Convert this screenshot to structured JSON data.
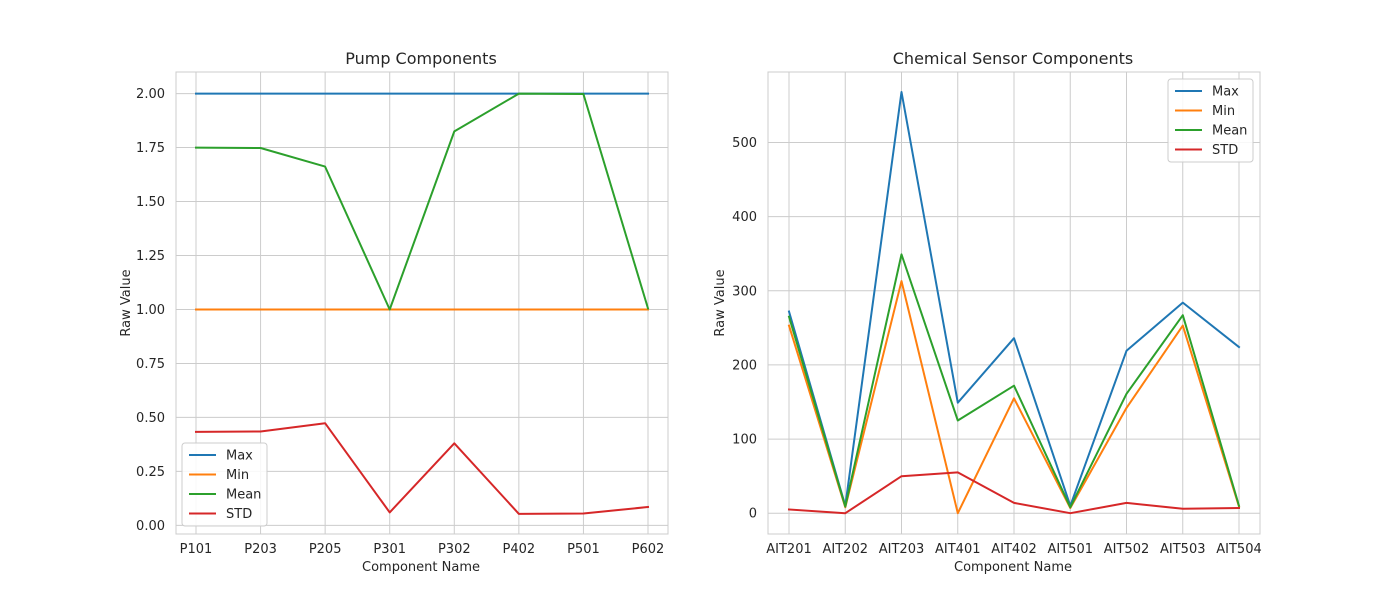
{
  "chart_data": [
    {
      "type": "line",
      "title": "Pump Components",
      "xlabel": "Component Name",
      "ylabel": "Raw Value",
      "categories": [
        "P101",
        "P203",
        "P205",
        "P301",
        "P302",
        "P402",
        "P501",
        "P602"
      ],
      "ylim": [
        -0.04,
        2.1
      ],
      "yticks": [
        0.0,
        0.25,
        0.5,
        0.75,
        1.0,
        1.25,
        1.5,
        1.75,
        2.0
      ],
      "ytick_labels": [
        "0.00",
        "0.25",
        "0.50",
        "0.75",
        "1.00",
        "1.25",
        "1.50",
        "1.75",
        "2.00"
      ],
      "grid": true,
      "legend_position": "lower-left",
      "series": [
        {
          "name": "Max",
          "color": "#1f77b4",
          "values": [
            2.0,
            2.0,
            2.0,
            2.0,
            2.0,
            2.0,
            2.0,
            2.0
          ]
        },
        {
          "name": "Min",
          "color": "#ff7f0e",
          "values": [
            1.0,
            1.0,
            1.0,
            1.0,
            1.0,
            1.0,
            1.0,
            1.0
          ]
        },
        {
          "name": "Mean",
          "color": "#2ca02c",
          "values": [
            1.75,
            1.748,
            1.662,
            1.0,
            1.825,
            2.0,
            1.998,
            1.005
          ]
        },
        {
          "name": "STD",
          "color": "#d62728",
          "values": [
            0.433,
            0.435,
            0.473,
            0.06,
            0.38,
            0.053,
            0.055,
            0.085
          ]
        }
      ]
    },
    {
      "type": "line",
      "title": "Chemical Sensor Components",
      "xlabel": "Component Name",
      "ylabel": "Raw Value",
      "categories": [
        "AIT201",
        "AIT202",
        "AIT203",
        "AIT401",
        "AIT402",
        "AIT501",
        "AIT502",
        "AIT503",
        "AIT504"
      ],
      "ylim": [
        -28,
        595
      ],
      "yticks": [
        0,
        100,
        200,
        300,
        400,
        500
      ],
      "ytick_labels": [
        "0",
        "100",
        "200",
        "300",
        "400",
        "500"
      ],
      "grid": true,
      "legend_position": "upper-right",
      "series": [
        {
          "name": "Max",
          "color": "#1f77b4",
          "values": [
            272,
            10,
            568,
            149,
            236,
            10,
            219,
            284,
            224
          ]
        },
        {
          "name": "Min",
          "color": "#ff7f0e",
          "values": [
            253,
            8,
            313,
            0,
            155,
            7,
            142,
            253,
            9
          ]
        },
        {
          "name": "Mean",
          "color": "#2ca02c",
          "values": [
            265,
            9,
            349,
            125,
            172,
            8,
            161,
            267,
            10
          ]
        },
        {
          "name": "STD",
          "color": "#d62728",
          "values": [
            5,
            0,
            50,
            55,
            14,
            0,
            14,
            6,
            7
          ]
        }
      ]
    }
  ]
}
